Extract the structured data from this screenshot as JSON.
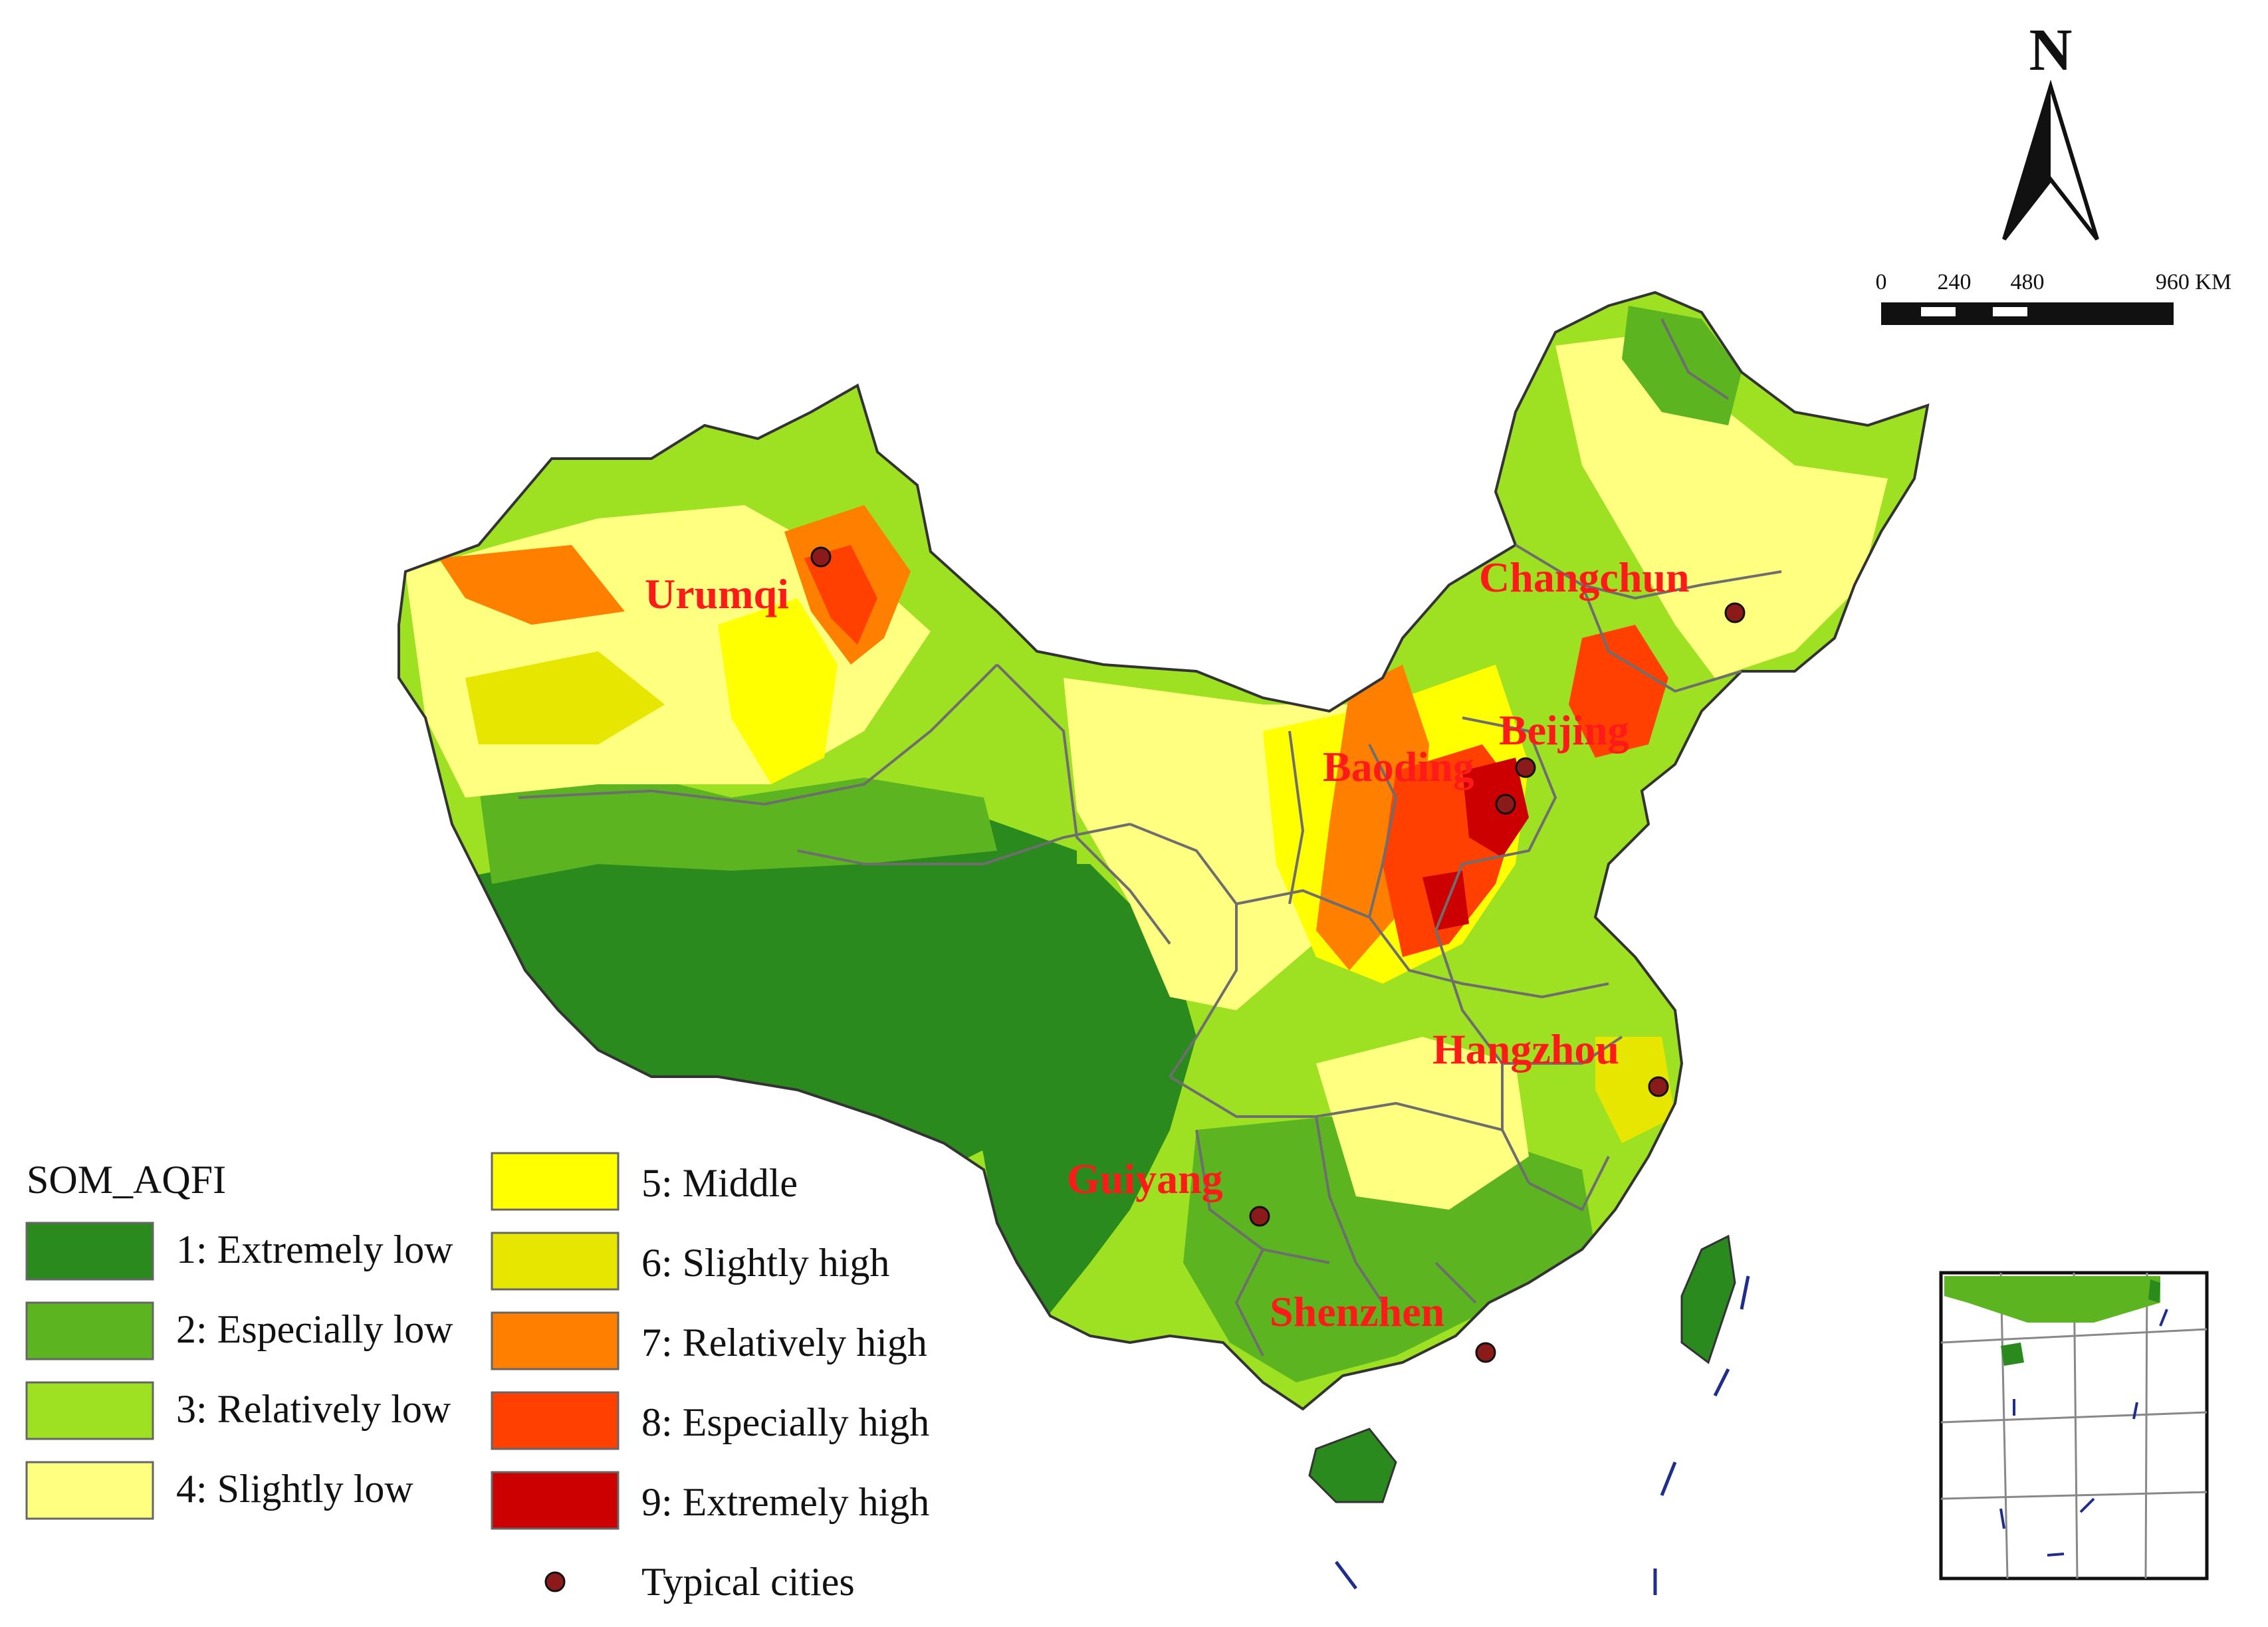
{
  "north_arrow": {
    "label": "N"
  },
  "scale_bar": {
    "ticks": [
      "0",
      "240",
      "480",
      "960 KM"
    ]
  },
  "legend": {
    "title": "SOM_AQFI",
    "classes": [
      {
        "label": "1: Extremely low",
        "color": "#2a8a1e"
      },
      {
        "label": "2: Especially low",
        "color": "#5cb520"
      },
      {
        "label": "3: Relatively low",
        "color": "#9ee022"
      },
      {
        "label": "4: Slightly low",
        "color": "#ffff80"
      },
      {
        "label": "5: Middle",
        "color": "#ffff00"
      },
      {
        "label": "6: Slightly high",
        "color": "#e6e600"
      },
      {
        "label": "7: Relatively high",
        "color": "#ff8000"
      },
      {
        "label": "8: Especially high",
        "color": "#ff4000"
      },
      {
        "label": "9: Extremely high",
        "color": "#cc0000"
      }
    ],
    "point_label": "Typical cities",
    "point_color": "#8b1a1a"
  },
  "cities": [
    {
      "name": "Urumqi"
    },
    {
      "name": "Changchun"
    },
    {
      "name": "Beijing"
    },
    {
      "name": "Baoding"
    },
    {
      "name": "Hangzhou"
    },
    {
      "name": "Guiyang"
    },
    {
      "name": "Shenzhen"
    }
  ],
  "colors": {
    "city_label": "#ff1a1a",
    "boundary": "#6e6e6e",
    "sea_islands": "#1f2d8c"
  }
}
